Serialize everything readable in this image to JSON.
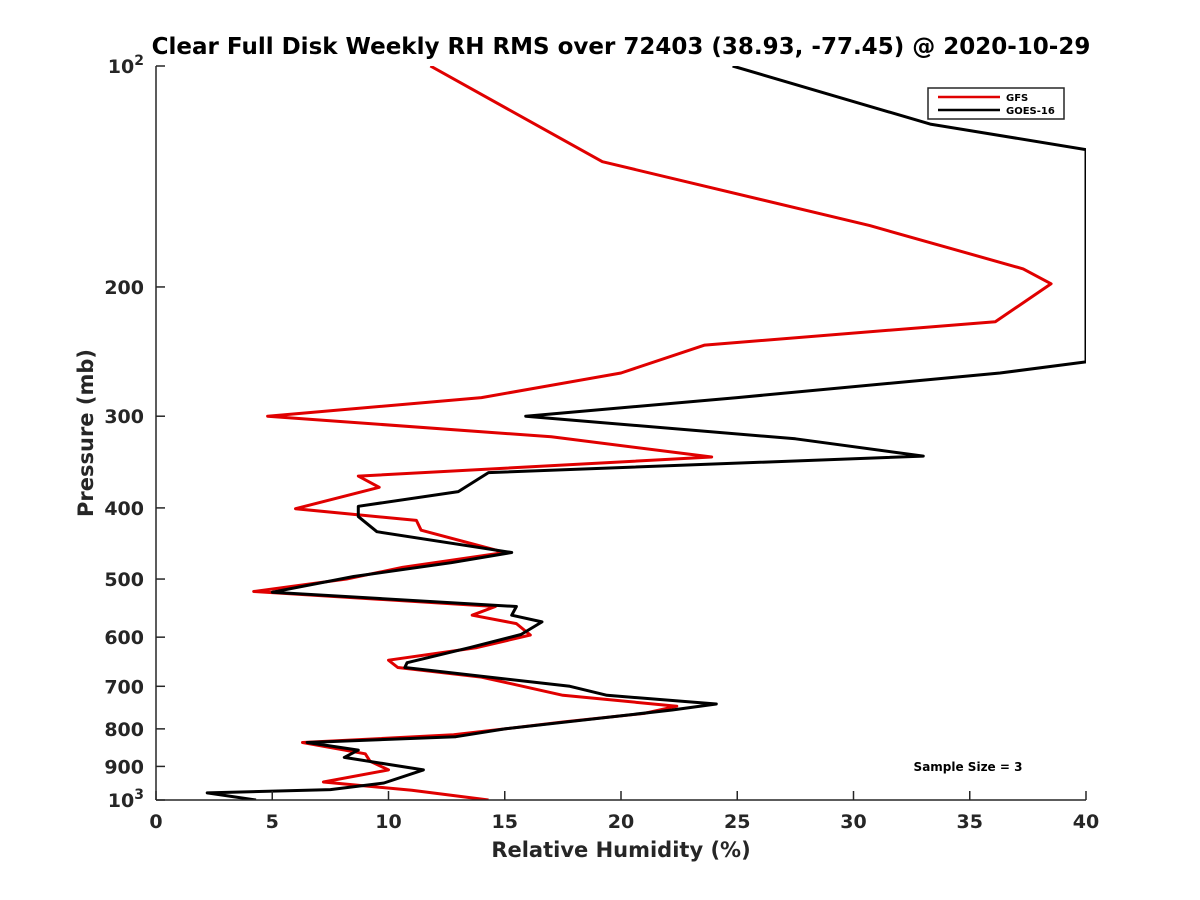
{
  "chart_data": {
    "type": "line",
    "title": "Clear Full Disk Weekly RH RMS over 72403 (38.93, -77.45) @ 2020-10-29",
    "xlabel": "Relative Humidity (%)",
    "ylabel": "Pressure (mb)",
    "xlim": [
      0,
      40
    ],
    "ylim": [
      100,
      1000
    ],
    "y_scale": "log",
    "y_reversed": true,
    "grid": false,
    "legend_position": "top-right",
    "x_ticks": [
      {
        "value": 0,
        "label": "0"
      },
      {
        "value": 5,
        "label": "5"
      },
      {
        "value": 10,
        "label": "10"
      },
      {
        "value": 15,
        "label": "15"
      },
      {
        "value": 20,
        "label": "20"
      },
      {
        "value": 25,
        "label": "25"
      },
      {
        "value": 30,
        "label": "30"
      },
      {
        "value": 35,
        "label": "35"
      },
      {
        "value": 40,
        "label": "40"
      }
    ],
    "y_ticks": [
      {
        "value": 100,
        "base": "10",
        "exp": "2"
      },
      {
        "value": 200,
        "label": "200"
      },
      {
        "value": 300,
        "label": "300"
      },
      {
        "value": 400,
        "label": "400"
      },
      {
        "value": 500,
        "label": "500"
      },
      {
        "value": 600,
        "label": "600"
      },
      {
        "value": 700,
        "label": "700"
      },
      {
        "value": 800,
        "label": "800"
      },
      {
        "value": 900,
        "label": "900"
      },
      {
        "value": 1000,
        "base": "10",
        "exp": "3"
      }
    ],
    "annotation": "Sample Size = 3",
    "series": [
      {
        "name": "GFS",
        "color": "#e00000",
        "points": [
          [
            11.8,
            100
          ],
          [
            19.2,
            135
          ],
          [
            30.7,
            165
          ],
          [
            37.3,
            189
          ],
          [
            38.5,
            198
          ],
          [
            36.1,
            223
          ],
          [
            23.6,
            240
          ],
          [
            20.0,
            262
          ],
          [
            14.0,
            283
          ],
          [
            4.8,
            300
          ],
          [
            17.0,
            320
          ],
          [
            23.9,
            341
          ],
          [
            8.7,
            362
          ],
          [
            9.6,
            375
          ],
          [
            6.0,
            401
          ],
          [
            11.2,
            416
          ],
          [
            11.4,
            429
          ],
          [
            15.0,
            460
          ],
          [
            10.6,
            482
          ],
          [
            8.2,
            500
          ],
          [
            4.2,
            520
          ],
          [
            14.6,
            545
          ],
          [
            13.6,
            560
          ],
          [
            15.5,
            575
          ],
          [
            16.1,
            596
          ],
          [
            13.8,
            620
          ],
          [
            10.0,
            645
          ],
          [
            10.4,
            660
          ],
          [
            14.0,
            680
          ],
          [
            17.5,
            720
          ],
          [
            22.4,
            745
          ],
          [
            21.0,
            762
          ],
          [
            17.5,
            783
          ],
          [
            15.0,
            800
          ],
          [
            12.8,
            815
          ],
          [
            6.3,
            835
          ],
          [
            9.0,
            865
          ],
          [
            9.2,
            885
          ],
          [
            10.0,
            910
          ],
          [
            7.2,
            945
          ],
          [
            11.0,
            970
          ],
          [
            14.3,
            1000
          ]
        ]
      },
      {
        "name": "GOES-16",
        "color": "#000000",
        "points": [
          [
            24.8,
            100
          ],
          [
            33.3,
            120
          ],
          [
            40.0,
            130
          ],
          [
            40.0,
            253
          ],
          [
            36.3,
            262
          ],
          [
            25.0,
            283
          ],
          [
            15.9,
            300
          ],
          [
            27.5,
            322
          ],
          [
            33.0,
            340
          ],
          [
            14.3,
            358
          ],
          [
            13.0,
            380
          ],
          [
            8.7,
            398
          ],
          [
            8.7,
            411
          ],
          [
            9.5,
            431
          ],
          [
            15.3,
            460
          ],
          [
            12.7,
            475
          ],
          [
            8.5,
            496
          ],
          [
            5.0,
            521
          ],
          [
            15.5,
            545
          ],
          [
            15.3,
            560
          ],
          [
            16.6,
            572
          ],
          [
            15.7,
            595
          ],
          [
            13.5,
            620
          ],
          [
            10.8,
            650
          ],
          [
            10.7,
            660
          ],
          [
            17.8,
            700
          ],
          [
            19.4,
            720
          ],
          [
            24.1,
            740
          ],
          [
            22.2,
            754
          ],
          [
            15.0,
            800
          ],
          [
            12.9,
            820
          ],
          [
            6.5,
            835
          ],
          [
            8.7,
            855
          ],
          [
            8.1,
            875
          ],
          [
            11.5,
            910
          ],
          [
            9.8,
            948
          ],
          [
            7.5,
            968
          ],
          [
            2.2,
            978
          ],
          [
            4.3,
            1000
          ]
        ]
      }
    ]
  }
}
